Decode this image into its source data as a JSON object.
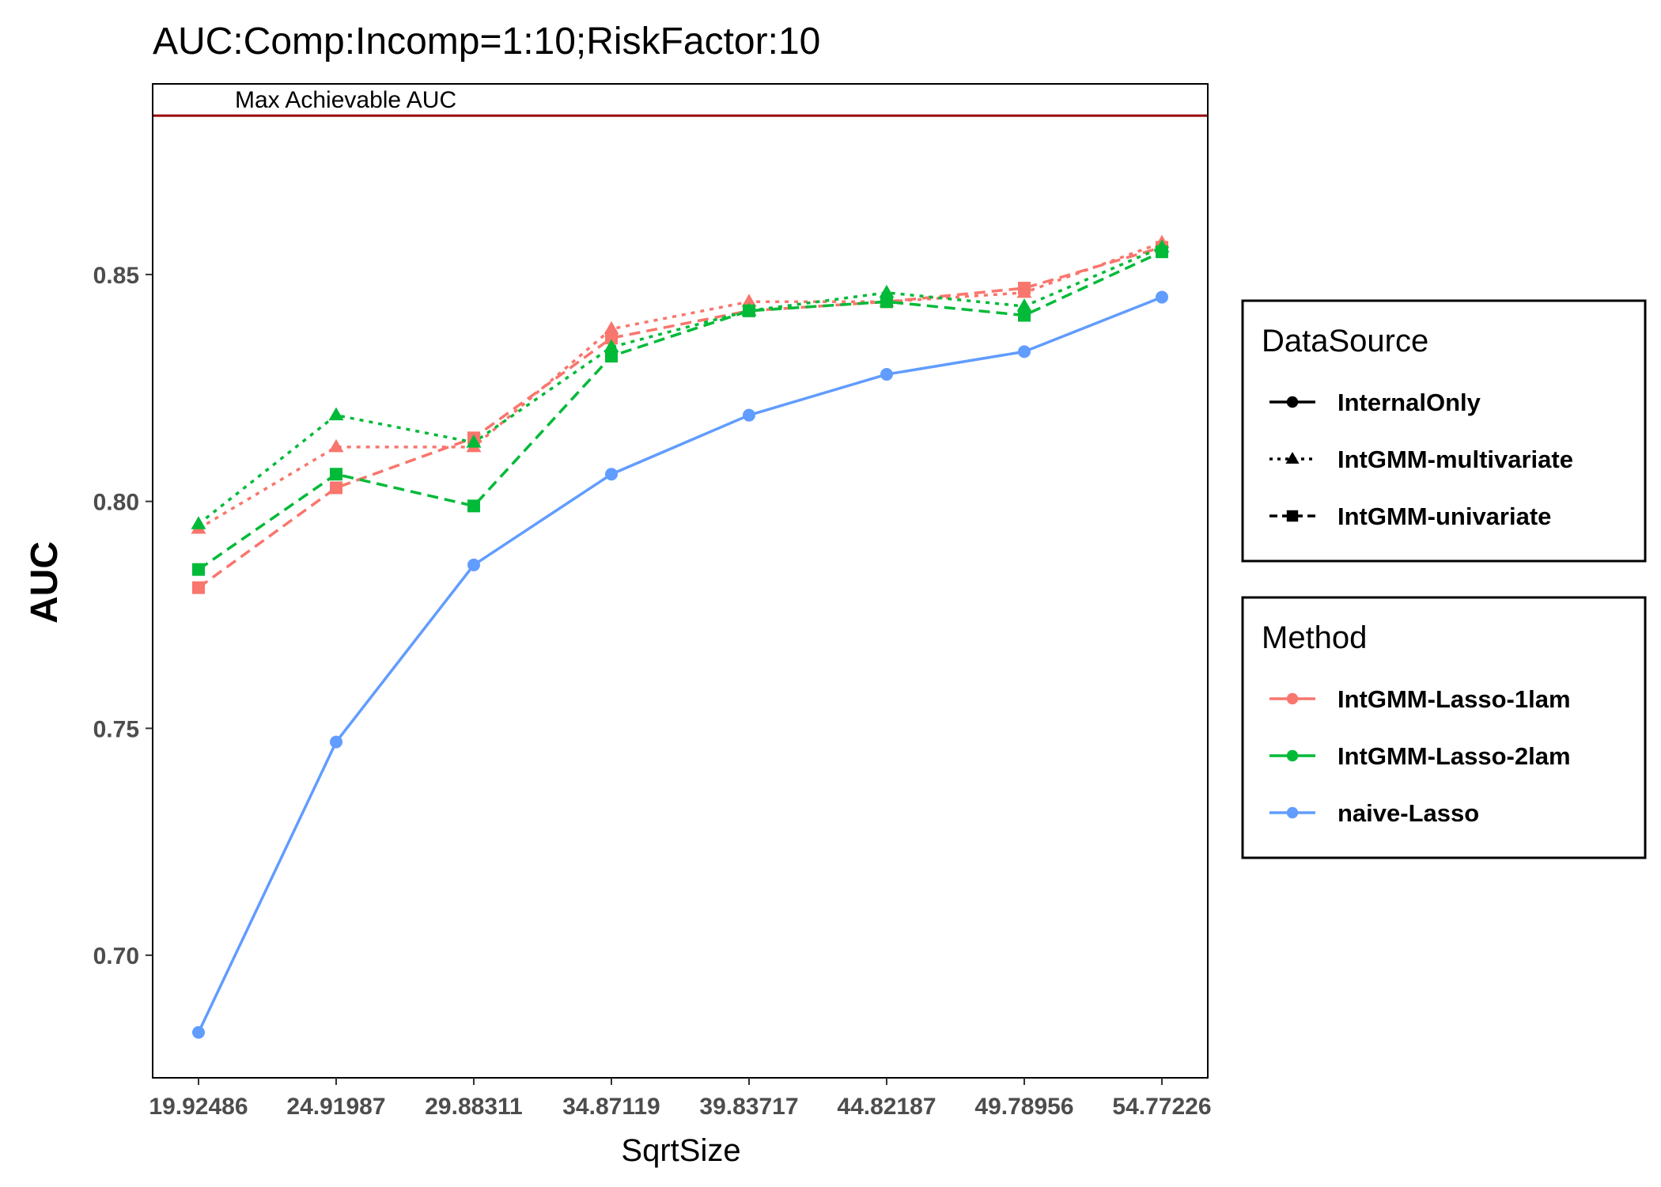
{
  "chart_data": {
    "type": "line",
    "title": "AUC:Comp:Incomp=1:10;RiskFactor:10",
    "xlabel": "SqrtSize",
    "ylabel": "AUC",
    "categories": [
      "19.92486",
      "24.91987",
      "29.88311",
      "34.87119",
      "39.83717",
      "44.82187",
      "49.78956",
      "54.77226"
    ],
    "ylim": [
      0.673,
      0.892
    ],
    "yticks": [
      "0.70",
      "0.75",
      "0.80",
      "0.85"
    ],
    "ytick_values": [
      0.7,
      0.75,
      0.8,
      0.85
    ],
    "grid": false,
    "reference_line": {
      "value": 0.885,
      "label": "Max Achievable AUC",
      "color": "#990000"
    },
    "series": [
      {
        "method": "IntGMM-Lasso-1lam",
        "datasource": "IntGMM-multivariate",
        "color": "#F8766D",
        "dash": "dotted",
        "marker": "triangle",
        "values": [
          0.794,
          0.812,
          0.812,
          0.838,
          0.844,
          0.844,
          0.846,
          0.857
        ]
      },
      {
        "method": "IntGMM-Lasso-1lam",
        "datasource": "IntGMM-univariate",
        "color": "#F8766D",
        "dash": "dashed",
        "marker": "square",
        "values": [
          0.781,
          0.803,
          0.814,
          0.836,
          0.842,
          0.844,
          0.847,
          0.856
        ]
      },
      {
        "method": "IntGMM-Lasso-2lam",
        "datasource": "IntGMM-multivariate",
        "color": "#00BA38",
        "dash": "dotted",
        "marker": "triangle",
        "values": [
          0.795,
          0.819,
          0.813,
          0.834,
          0.842,
          0.846,
          0.843,
          0.856
        ]
      },
      {
        "method": "IntGMM-Lasso-2lam",
        "datasource": "IntGMM-univariate",
        "color": "#00BA38",
        "dash": "dashed",
        "marker": "square",
        "values": [
          0.785,
          0.806,
          0.799,
          0.832,
          0.842,
          0.844,
          0.841,
          0.855
        ]
      },
      {
        "method": "naive-Lasso",
        "datasource": "InternalOnly",
        "color": "#619CFF",
        "dash": "solid",
        "marker": "circle",
        "values": [
          0.683,
          0.747,
          0.786,
          0.806,
          0.819,
          0.828,
          0.833,
          0.845
        ]
      }
    ],
    "legends": [
      {
        "title": "DataSource",
        "entries": [
          {
            "label": "InternalOnly",
            "dash": "solid",
            "marker": "circle",
            "color": "#000000"
          },
          {
            "label": "IntGMM-multivariate",
            "dash": "dotted",
            "marker": "triangle",
            "color": "#000000"
          },
          {
            "label": "IntGMM-univariate",
            "dash": "dashed",
            "marker": "square",
            "color": "#000000"
          }
        ]
      },
      {
        "title": "Method",
        "entries": [
          {
            "label": "IntGMM-Lasso-1lam",
            "dash": "solid",
            "marker": "circle",
            "color": "#F8766D"
          },
          {
            "label": "IntGMM-Lasso-2lam",
            "dash": "solid",
            "marker": "circle",
            "color": "#00BA38"
          },
          {
            "label": "naive-Lasso",
            "dash": "solid",
            "marker": "circle",
            "color": "#619CFF"
          }
        ]
      }
    ],
    "legend_position": "right"
  }
}
